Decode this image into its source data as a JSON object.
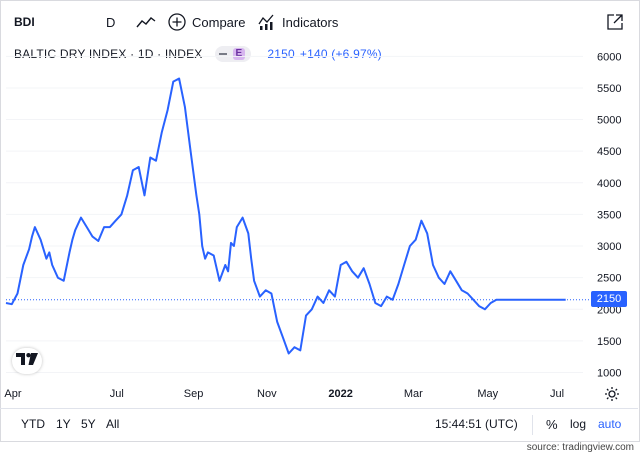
{
  "toolbar": {
    "symbol": "BDI",
    "interval": "D",
    "chart_type_icon": "line-chart-icon",
    "compare_label": "Compare",
    "indicators_label": "Indicators",
    "expand_icon": "expand-icon"
  },
  "legend": {
    "title": "BALTIC DRY INDEX · 1D · INDEX",
    "badge": "E",
    "last_value": "2150",
    "change": "+140 (+6.97%)"
  },
  "price_badge": "2150",
  "colors": {
    "line": "#2962ff",
    "badge": "#2962ff",
    "text": "#131722",
    "grid": "#f0f3fa"
  },
  "bottom": {
    "ranges": [
      "YTD",
      "1Y",
      "5Y",
      "All"
    ],
    "time": "15:44:51 (UTC)",
    "percent": "%",
    "log": "log",
    "auto": "auto"
  },
  "source": "source: tradingview.com",
  "chart_data": {
    "type": "line",
    "title": "BALTIC DRY INDEX · 1D · INDEX",
    "y_ticks": [
      1000,
      1500,
      2000,
      2500,
      3000,
      3500,
      4000,
      4500,
      5000,
      5500,
      6000
    ],
    "ylim": [
      850,
      6100
    ],
    "x_ticks": [
      "Apr",
      "Jul",
      "Sep",
      "Nov",
      "2022",
      "Mar",
      "May",
      "Jul"
    ],
    "x_tick_bold": [
      false,
      false,
      false,
      false,
      true,
      false,
      false,
      false
    ],
    "last_value": 2150,
    "last_value_line": 2150,
    "series": [
      {
        "t": [
          0,
          0.01,
          0.02,
          0.03,
          0.04,
          0.045,
          0.05,
          0.06,
          0.07,
          0.075,
          0.08,
          0.09,
          0.1,
          0.11,
          0.115,
          0.12,
          0.13,
          0.14,
          0.15,
          0.16,
          0.17,
          0.18,
          0.19,
          0.2,
          0.21,
          0.22,
          0.23,
          0.24,
          0.25,
          0.26,
          0.27,
          0.28,
          0.29,
          0.3,
          0.31,
          0.32,
          0.33,
          0.335,
          0.34,
          0.345,
          0.35,
          0.36,
          0.37,
          0.38,
          0.385,
          0.39,
          0.395,
          0.4,
          0.41,
          0.42,
          0.425,
          0.43,
          0.44,
          0.45,
          0.46,
          0.47,
          0.48,
          0.49,
          0.5,
          0.51,
          0.52,
          0.525,
          0.53,
          0.54,
          0.55,
          0.56,
          0.57,
          0.58,
          0.59,
          0.6,
          0.61,
          0.62,
          0.63,
          0.64,
          0.65,
          0.66,
          0.67,
          0.68,
          0.69,
          0.7,
          0.71,
          0.72,
          0.73,
          0.74,
          0.75,
          0.76,
          0.77,
          0.78,
          0.79,
          0.8,
          0.81,
          0.82,
          0.83,
          0.84,
          0.85,
          0.86,
          0.87,
          0.88,
          0.89,
          0.9,
          0.91,
          0.92,
          0.93,
          0.94,
          0.95,
          0.96,
          0.965,
          0.97
        ],
        "values": [
          2100,
          2080,
          2250,
          2700,
          2950,
          3150,
          3300,
          3100,
          2800,
          2900,
          2700,
          2500,
          2450,
          2900,
          3100,
          3250,
          3450,
          3300,
          3150,
          3080,
          3300,
          3300,
          3400,
          3500,
          3800,
          4200,
          4250,
          3800,
          4400,
          4350,
          4800,
          5150,
          5600,
          5650,
          5200,
          4500,
          3800,
          3500,
          3000,
          2800,
          2900,
          2850,
          2450,
          2700,
          2600,
          3050,
          3000,
          3300,
          3450,
          3200,
          2800,
          2450,
          2200,
          2300,
          2250,
          1800,
          1550,
          1300,
          1400,
          1350,
          1900,
          1950,
          2000,
          2200,
          2100,
          2300,
          2200,
          2700,
          2750,
          2600,
          2500,
          2650,
          2400,
          2100,
          2050,
          2200,
          2150,
          2400,
          2700,
          3000,
          3100,
          3400,
          3200,
          2700,
          2500,
          2400,
          2600,
          2450,
          2300,
          2250,
          2150,
          2050,
          2000,
          2100,
          2150,
          2150,
          2150,
          2150,
          2150,
          2150,
          2150,
          2150,
          2150,
          2150,
          2150,
          2150,
          2150,
          2150
        ]
      }
    ]
  }
}
